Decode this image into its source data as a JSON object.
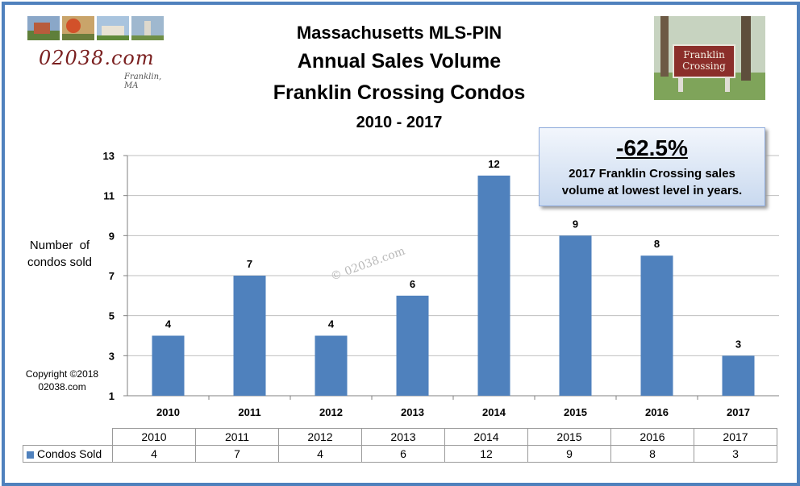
{
  "header": {
    "line1": "Massachusetts MLS-PIN",
    "line2": "Annual Sales Volume",
    "line3": "Franklin Crossing Condos",
    "line4": "2010 - 2017"
  },
  "logo": {
    "text": "02038.com",
    "subtext": "Franklin, MA"
  },
  "sign": {
    "line1": "Franklin",
    "line2": "Crossing"
  },
  "callout": {
    "percent": "-62.5%",
    "line1": "2017 Franklin Crossing sales",
    "line2": "volume at lowest level in years."
  },
  "ylabel_line1": "Number  of",
  "ylabel_line2": "condos sold",
  "copyright_line1": "Copyright ©2018",
  "copyright_line2": "02038.com",
  "watermark": "© 02038.com",
  "colors": {
    "bar": "#4f81bd",
    "frame": "#4f81bd",
    "grid": "#bfbfbf"
  },
  "chart_data": {
    "type": "bar",
    "title": "Massachusetts MLS-PIN Annual Sales Volume Franklin Crossing Condos 2010 - 2017",
    "ylabel": "Number  of condos sold",
    "categories": [
      "2010",
      "2011",
      "2012",
      "2013",
      "2014",
      "2015",
      "2016",
      "2017"
    ],
    "series": [
      {
        "name": "Condos Sold",
        "values": [
          4,
          7,
          4,
          6,
          12,
          9,
          8,
          3
        ]
      }
    ],
    "ylim": [
      1,
      13
    ],
    "yticks": [
      "1",
      "3",
      "5",
      "7",
      "9",
      "11",
      "13"
    ],
    "grid": true,
    "data_table": true
  }
}
